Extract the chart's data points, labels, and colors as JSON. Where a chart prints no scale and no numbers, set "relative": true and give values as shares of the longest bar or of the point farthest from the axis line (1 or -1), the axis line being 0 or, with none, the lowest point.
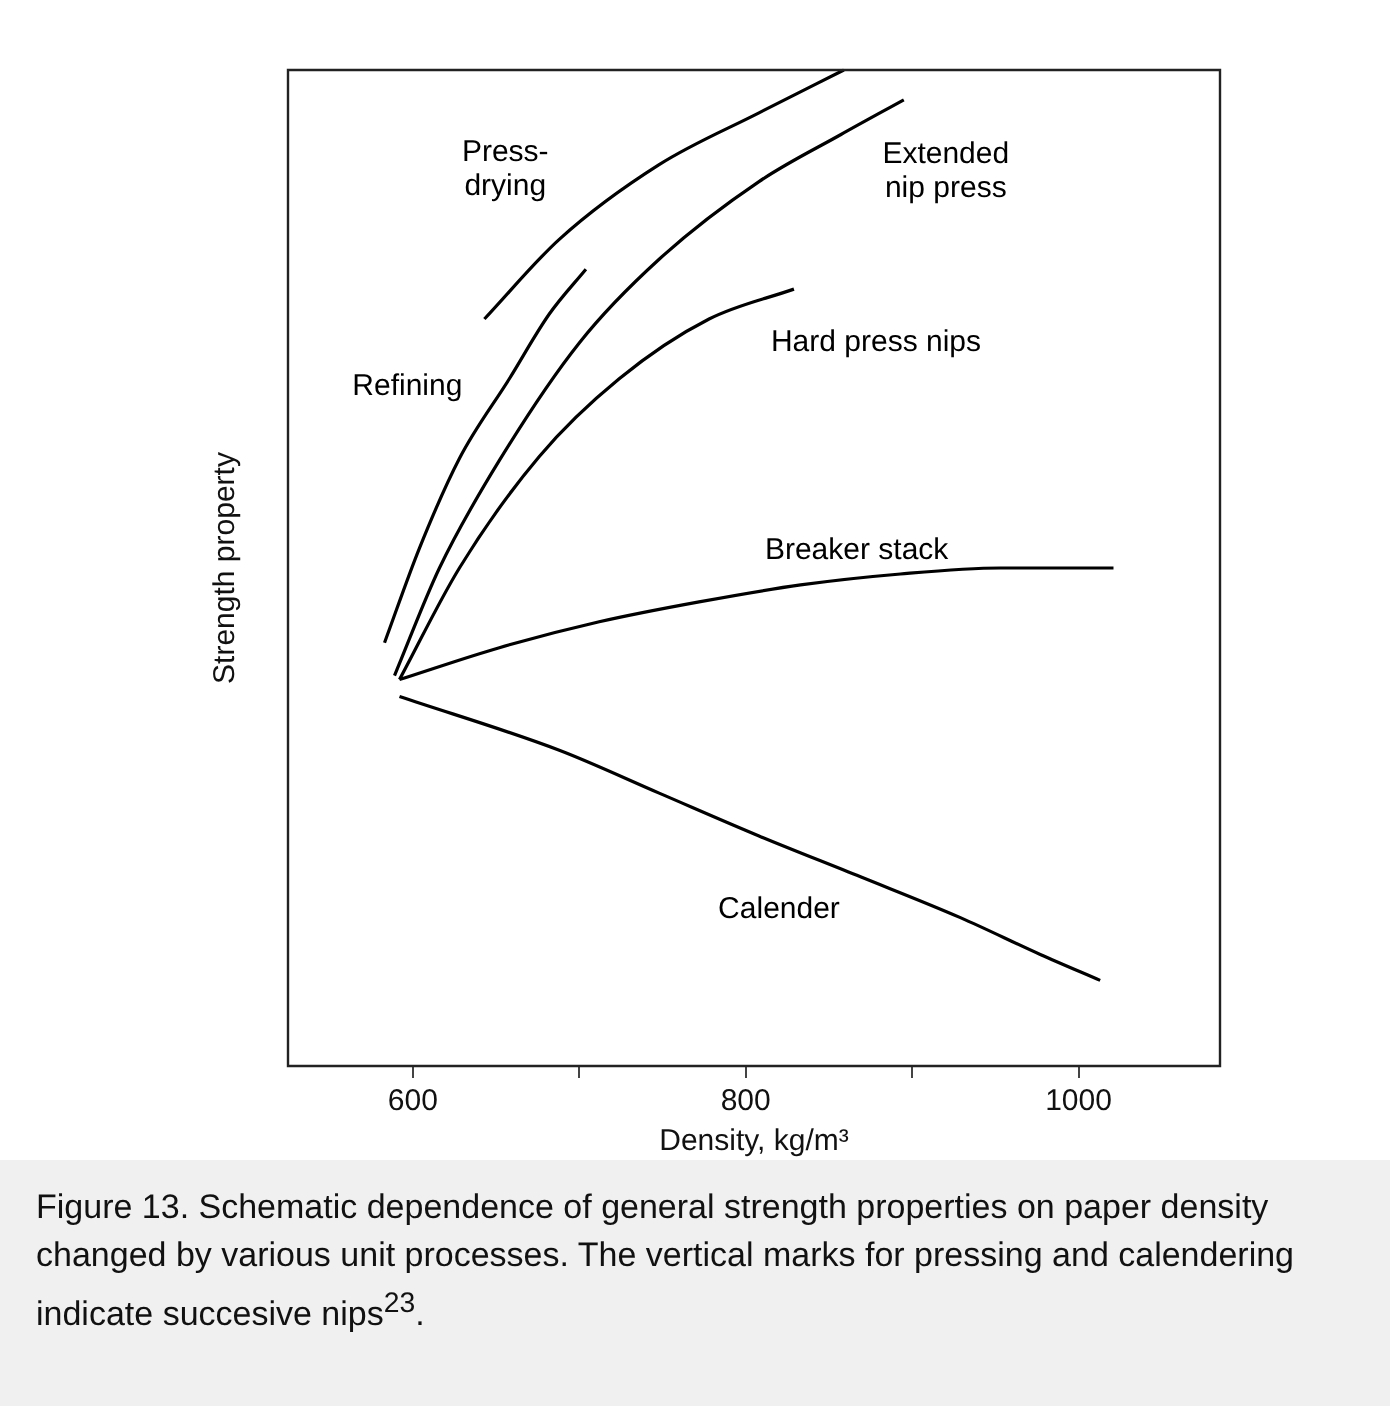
{
  "chart_data": {
    "type": "line",
    "xlabel": "Density, kg/m³",
    "ylabel": "Strength property",
    "relative": true,
    "xlim": [
      525,
      1085
    ],
    "xticks": [
      600,
      {
        "value": 700,
        "label": null
      },
      800,
      {
        "value": 900,
        "label": null
      },
      1000
    ],
    "grid": false,
    "legend": false,
    "marker": "none",
    "line_style": "solid",
    "series": [
      {
        "name": "Press-\ndrying",
        "color": "#000000",
        "x": [
          643,
          688,
          748,
          808,
          859
        ],
        "values": [
          0.75,
          0.83,
          0.905,
          0.957,
          1
        ]
      },
      {
        "name": "Refining",
        "color": "#000000",
        "x": [
          583,
          604,
          628,
          658,
          682,
          704
        ],
        "values": [
          0.425,
          0.52,
          0.61,
          0.69,
          0.755,
          0.8
        ]
      },
      {
        "name": "Extended\nnip press",
        "color": "#000000",
        "x": [
          589,
          616,
          652,
          700,
          748,
          808,
          857,
          895
        ],
        "values": [
          0.392,
          0.5,
          0.608,
          0.726,
          0.81,
          0.888,
          0.935,
          0.97
        ]
      },
      {
        "name": "Hard press nips",
        "color": "#000000",
        "x": [
          592,
          628,
          676,
          724,
          778,
          829
        ],
        "values": [
          0.388,
          0.5,
          0.612,
          0.69,
          0.75,
          0.78
        ]
      },
      {
        "name": "Breaker stack",
        "color": "#000000",
        "x": [
          592,
          652,
          712,
          772,
          833,
          893,
          953,
          1021
        ],
        "values": [
          0.388,
          0.42,
          0.446,
          0.466,
          0.483,
          0.494,
          0.5,
          0.5
        ]
      },
      {
        "name": "Calender",
        "color": "#000000",
        "x": [
          592,
          688,
          748,
          808,
          869,
          929,
          977,
          1013
        ],
        "values": [
          0.371,
          0.317,
          0.274,
          0.231,
          0.19,
          0.149,
          0.112,
          0.086
        ]
      }
    ],
    "annotations": [
      "Figure 13. Schematic dependence of general strength properties on paper density changed by various unit processes. The vertical marks for pressing and calendering indicate succesive nips$^{23}$."
    ]
  }
}
